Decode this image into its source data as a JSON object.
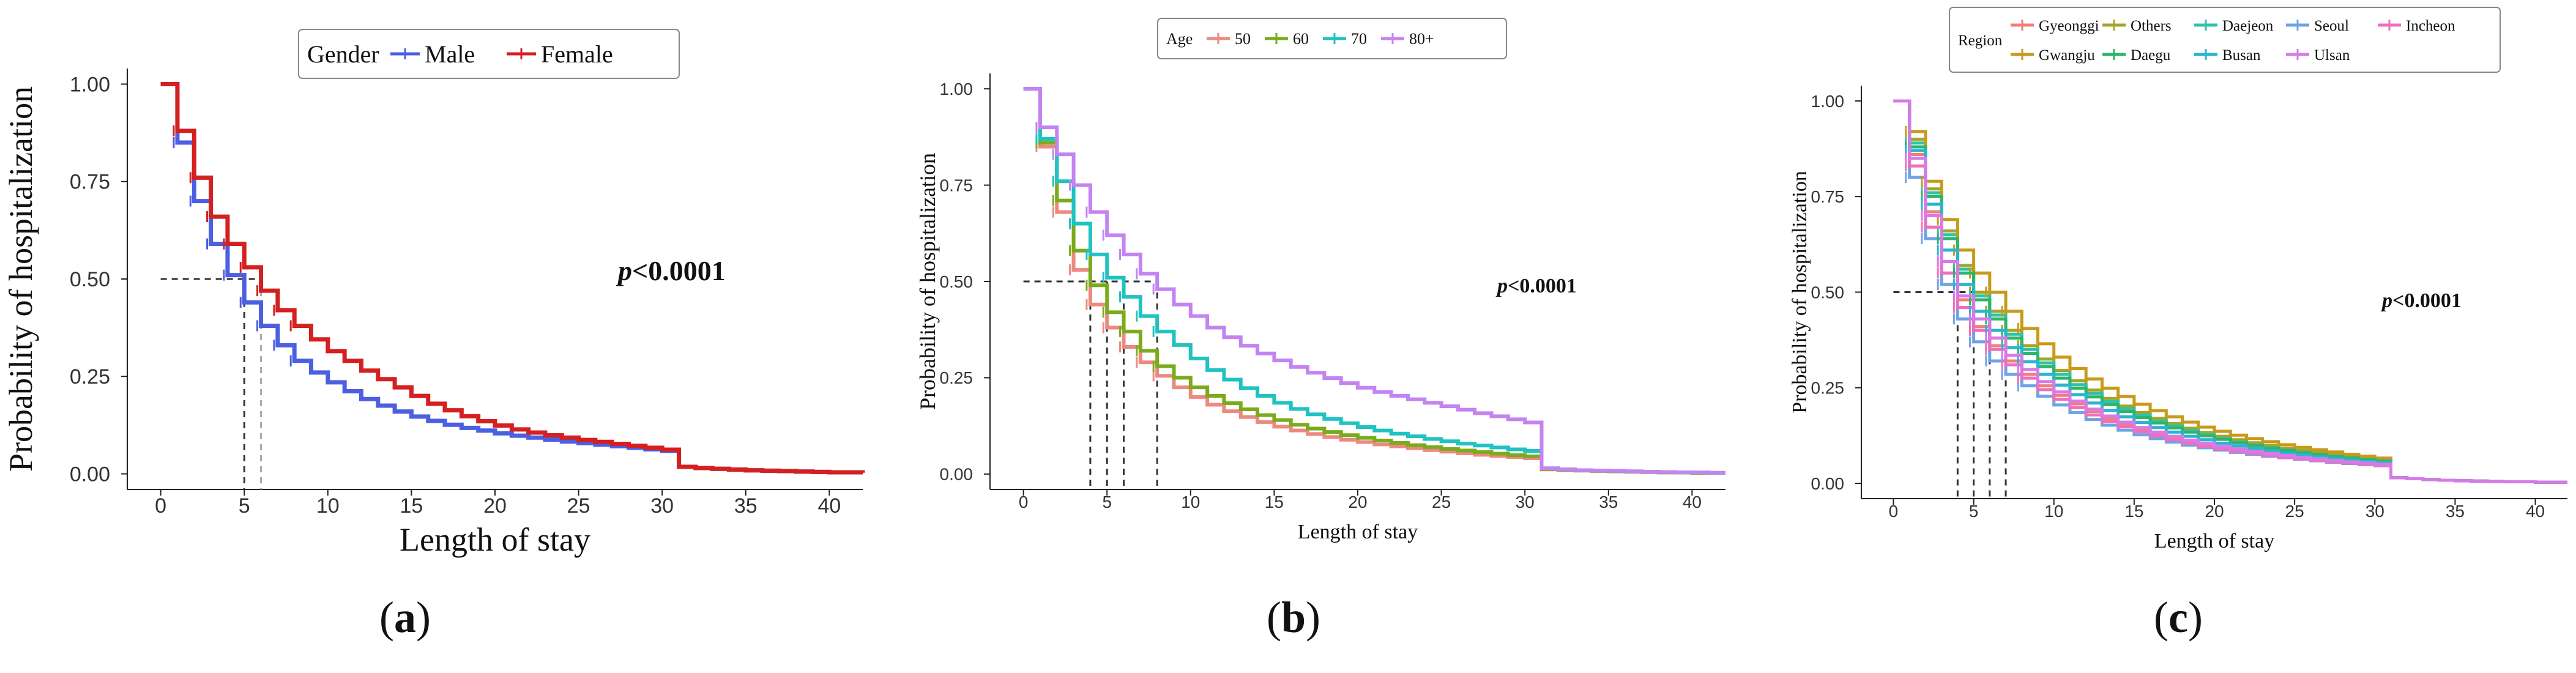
{
  "charts": [
    {
      "id": "a",
      "caption_open": "(",
      "caption_letter": "a",
      "caption_close": ")",
      "ylabel": "Probability of hospitalization",
      "xlabel": "Length of stay",
      "xticks": [
        "0",
        "5",
        "10",
        "15",
        "20",
        "25",
        "30",
        "35",
        "40"
      ],
      "yticks": [
        "0.00",
        "0.25",
        "0.50",
        "0.75",
        "1.00"
      ],
      "xlim": [
        -2,
        42
      ],
      "ylim": [
        -0.04,
        1.04
      ],
      "legend_title": "Gender",
      "pvalue": "p<0.0001",
      "medians": [
        5,
        6
      ],
      "series": [
        {
          "name": "Male",
          "color": "#4c5fe0"
        },
        {
          "name": "Female",
          "color": "#d42020"
        }
      ]
    },
    {
      "id": "b",
      "caption_open": "(",
      "caption_letter": "b",
      "caption_close": ")",
      "ylabel": "Probability of hospitalization",
      "xlabel": "Length of stay",
      "xticks": [
        "0",
        "5",
        "10",
        "15",
        "20",
        "25",
        "30",
        "35",
        "40"
      ],
      "yticks": [
        "0.00",
        "0.25",
        "0.50",
        "0.75",
        "1.00"
      ],
      "xlim": [
        -2,
        42
      ],
      "ylim": [
        -0.04,
        1.04
      ],
      "legend_title": "Age",
      "pvalue": "p<0.0001",
      "medians": [
        4,
        5,
        6,
        8
      ],
      "series": [
        {
          "name": "50",
          "color": "#ec8a80"
        },
        {
          "name": "60",
          "color": "#7aab1c"
        },
        {
          "name": "70",
          "color": "#20c2c2"
        },
        {
          "name": "80+",
          "color": "#c384f2"
        }
      ]
    },
    {
      "id": "c",
      "caption_open": "(",
      "caption_letter": "c",
      "caption_close": ")",
      "ylabel": "Probability of hospitalization",
      "xlabel": "Length of stay",
      "xticks": [
        "0",
        "5",
        "10",
        "15",
        "20",
        "25",
        "30",
        "35",
        "40"
      ],
      "yticks": [
        "0.00",
        "0.25",
        "0.50",
        "0.75",
        "1.00"
      ],
      "xlim": [
        -2,
        42
      ],
      "ylim": [
        -0.04,
        1.04
      ],
      "legend_title": "Region",
      "pvalue": "p<0.0001",
      "medians": [
        4,
        5,
        6,
        7
      ],
      "series": [
        {
          "name": "Gyeonggi",
          "color": "#ef7f78"
        },
        {
          "name": "Others",
          "color": "#a3a52a"
        },
        {
          "name": "Daejeon",
          "color": "#2ec3a9"
        },
        {
          "name": "Seoul",
          "color": "#6fa3e6"
        },
        {
          "name": "Incheon",
          "color": "#ee6fbf"
        },
        {
          "name": "Gwangju",
          "color": "#c99a1a"
        },
        {
          "name": "Daegu",
          "color": "#2db56b"
        },
        {
          "name": "Busan",
          "color": "#29b5cf"
        },
        {
          "name": "Ulsan",
          "color": "#d77ae8"
        }
      ]
    }
  ],
  "chart_data": [
    {
      "type": "line",
      "step": true,
      "title": "(a)",
      "xlabel": "Length of stay",
      "ylabel": "Probability of hospitalization",
      "xlim": [
        0,
        42
      ],
      "ylim": [
        0,
        1
      ],
      "legend_title": "Gender",
      "annotation": "p<0.0001",
      "x": [
        0,
        1,
        2,
        3,
        4,
        5,
        6,
        7,
        8,
        9,
        10,
        11,
        12,
        13,
        14,
        15,
        16,
        17,
        18,
        19,
        20,
        21,
        22,
        23,
        24,
        25,
        26,
        27,
        28,
        29,
        30,
        31,
        32,
        33,
        34,
        35,
        36,
        37,
        38,
        39,
        40,
        41,
        42
      ],
      "series": [
        {
          "name": "Male",
          "median": 5,
          "values": [
            1.0,
            0.85,
            0.7,
            0.59,
            0.51,
            0.44,
            0.38,
            0.33,
            0.29,
            0.26,
            0.235,
            0.212,
            0.192,
            0.175,
            0.16,
            0.147,
            0.136,
            0.126,
            0.118,
            0.111,
            0.104,
            0.098,
            0.093,
            0.088,
            0.083,
            0.079,
            0.075,
            0.071,
            0.067,
            0.063,
            0.059,
            0.018,
            0.015,
            0.013,
            0.011,
            0.009,
            0.008,
            0.007,
            0.006,
            0.005,
            0.004,
            0.004,
            0.003
          ]
        },
        {
          "name": "Female",
          "median": 6,
          "values": [
            1.0,
            0.88,
            0.76,
            0.66,
            0.59,
            0.53,
            0.47,
            0.42,
            0.38,
            0.345,
            0.315,
            0.29,
            0.265,
            0.243,
            0.222,
            0.2,
            0.18,
            0.163,
            0.148,
            0.135,
            0.124,
            0.114,
            0.106,
            0.099,
            0.093,
            0.087,
            0.082,
            0.077,
            0.072,
            0.067,
            0.062,
            0.018,
            0.015,
            0.013,
            0.011,
            0.009,
            0.008,
            0.007,
            0.006,
            0.005,
            0.004,
            0.004,
            0.003
          ]
        }
      ]
    },
    {
      "type": "line",
      "step": true,
      "title": "(b)",
      "xlabel": "Length of stay",
      "ylabel": "Probability of hospitalization",
      "xlim": [
        0,
        42
      ],
      "ylim": [
        0,
        1
      ],
      "legend_title": "Age",
      "annotation": "p<0.0001",
      "x": [
        0,
        1,
        2,
        3,
        4,
        5,
        6,
        7,
        8,
        9,
        10,
        11,
        12,
        13,
        14,
        15,
        16,
        17,
        18,
        19,
        20,
        21,
        22,
        23,
        24,
        25,
        26,
        27,
        28,
        29,
        30,
        31,
        32,
        33,
        34,
        35,
        36,
        37,
        38,
        39,
        40,
        41,
        42
      ],
      "series": [
        {
          "name": "50",
          "median": 4,
          "values": [
            1.0,
            0.85,
            0.68,
            0.53,
            0.44,
            0.38,
            0.33,
            0.29,
            0.255,
            0.225,
            0.2,
            0.18,
            0.163,
            0.148,
            0.135,
            0.123,
            0.113,
            0.104,
            0.096,
            0.089,
            0.083,
            0.077,
            0.072,
            0.067,
            0.062,
            0.058,
            0.054,
            0.05,
            0.047,
            0.044,
            0.041,
            0.012,
            0.01,
            0.009,
            0.008,
            0.007,
            0.006,
            0.005,
            0.004,
            0.004,
            0.003,
            0.003,
            0.003
          ]
        },
        {
          "name": "60",
          "median": 5,
          "values": [
            1.0,
            0.86,
            0.71,
            0.58,
            0.49,
            0.42,
            0.37,
            0.32,
            0.28,
            0.25,
            0.225,
            0.203,
            0.184,
            0.168,
            0.153,
            0.14,
            0.128,
            0.118,
            0.109,
            0.101,
            0.094,
            0.087,
            0.081,
            0.075,
            0.07,
            0.065,
            0.061,
            0.057,
            0.053,
            0.049,
            0.046,
            0.013,
            0.011,
            0.009,
            0.008,
            0.007,
            0.006,
            0.005,
            0.004,
            0.004,
            0.003,
            0.003,
            0.003
          ]
        },
        {
          "name": "70",
          "median": 6,
          "values": [
            1.0,
            0.87,
            0.76,
            0.65,
            0.57,
            0.51,
            0.46,
            0.41,
            0.37,
            0.335,
            0.3,
            0.27,
            0.245,
            0.223,
            0.203,
            0.185,
            0.169,
            0.155,
            0.143,
            0.132,
            0.122,
            0.113,
            0.105,
            0.098,
            0.091,
            0.085,
            0.079,
            0.074,
            0.069,
            0.064,
            0.06,
            0.015,
            0.012,
            0.01,
            0.009,
            0.008,
            0.007,
            0.006,
            0.005,
            0.004,
            0.004,
            0.003,
            0.003
          ]
        },
        {
          "name": "80+",
          "median": 8,
          "values": [
            1.0,
            0.9,
            0.83,
            0.75,
            0.68,
            0.62,
            0.57,
            0.52,
            0.48,
            0.44,
            0.41,
            0.38,
            0.355,
            0.333,
            0.313,
            0.295,
            0.278,
            0.263,
            0.249,
            0.236,
            0.224,
            0.213,
            0.203,
            0.194,
            0.185,
            0.176,
            0.167,
            0.158,
            0.15,
            0.142,
            0.134,
            0.015,
            0.012,
            0.01,
            0.009,
            0.008,
            0.007,
            0.006,
            0.005,
            0.004,
            0.004,
            0.003,
            0.003
          ]
        }
      ]
    },
    {
      "type": "line",
      "step": true,
      "title": "(c)",
      "xlabel": "Length of stay",
      "ylabel": "Probability of hospitalization",
      "xlim": [
        0,
        42
      ],
      "ylim": [
        0,
        1
      ],
      "legend_title": "Region",
      "annotation": "p<0.0001",
      "x": [
        0,
        1,
        2,
        3,
        4,
        5,
        6,
        7,
        8,
        9,
        10,
        11,
        12,
        13,
        14,
        15,
        16,
        17,
        18,
        19,
        20,
        21,
        22,
        23,
        24,
        25,
        26,
        27,
        28,
        29,
        30,
        31,
        32,
        33,
        34,
        35,
        36,
        37,
        38,
        39,
        40,
        41,
        42
      ],
      "series": [
        {
          "name": "Gyeonggi",
          "median": 5,
          "values": [
            1.0,
            0.86,
            0.71,
            0.58,
            0.48,
            0.41,
            0.36,
            0.32,
            0.285,
            0.255,
            0.23,
            0.208,
            0.188,
            0.17,
            0.155,
            0.142,
            0.13,
            0.12,
            0.111,
            0.103,
            0.096,
            0.09,
            0.084,
            0.079,
            0.074,
            0.07,
            0.066,
            0.062,
            0.058,
            0.055,
            0.052,
            0.015,
            0.012,
            0.01,
            0.008,
            0.007,
            0.006,
            0.005,
            0.004,
            0.004,
            0.003,
            0.003,
            0.003
          ]
        },
        {
          "name": "Others",
          "median": 6,
          "values": [
            1.0,
            0.9,
            0.77,
            0.66,
            0.57,
            0.5,
            0.45,
            0.4,
            0.36,
            0.325,
            0.295,
            0.268,
            0.244,
            0.222,
            0.202,
            0.185,
            0.17,
            0.156,
            0.144,
            0.133,
            0.123,
            0.114,
            0.106,
            0.099,
            0.092,
            0.086,
            0.08,
            0.075,
            0.07,
            0.065,
            0.06,
            0.015,
            0.012,
            0.01,
            0.008,
            0.007,
            0.006,
            0.005,
            0.004,
            0.004,
            0.003,
            0.003,
            0.003
          ]
        },
        {
          "name": "Daejeon",
          "median": 6,
          "values": [
            1.0,
            0.89,
            0.76,
            0.65,
            0.56,
            0.49,
            0.44,
            0.39,
            0.35,
            0.315,
            0.285,
            0.258,
            0.235,
            0.214,
            0.195,
            0.178,
            0.163,
            0.15,
            0.138,
            0.127,
            0.117,
            0.108,
            0.1,
            0.093,
            0.087,
            0.081,
            0.076,
            0.071,
            0.066,
            0.062,
            0.058,
            0.015,
            0.012,
            0.01,
            0.008,
            0.007,
            0.006,
            0.005,
            0.004,
            0.004,
            0.003,
            0.003,
            0.003
          ]
        },
        {
          "name": "Seoul",
          "median": 4,
          "values": [
            1.0,
            0.8,
            0.64,
            0.52,
            0.43,
            0.37,
            0.32,
            0.285,
            0.255,
            0.228,
            0.205,
            0.185,
            0.167,
            0.152,
            0.139,
            0.127,
            0.117,
            0.108,
            0.1,
            0.093,
            0.087,
            0.081,
            0.076,
            0.071,
            0.067,
            0.063,
            0.059,
            0.055,
            0.052,
            0.049,
            0.046,
            0.015,
            0.012,
            0.01,
            0.008,
            0.007,
            0.006,
            0.005,
            0.004,
            0.004,
            0.003,
            0.003,
            0.003
          ]
        },
        {
          "name": "Incheon",
          "median": 5,
          "values": [
            1.0,
            0.83,
            0.67,
            0.55,
            0.46,
            0.4,
            0.35,
            0.31,
            0.275,
            0.245,
            0.22,
            0.198,
            0.179,
            0.162,
            0.148,
            0.135,
            0.124,
            0.114,
            0.105,
            0.097,
            0.09,
            0.084,
            0.078,
            0.073,
            0.068,
            0.064,
            0.06,
            0.056,
            0.053,
            0.05,
            0.047,
            0.015,
            0.012,
            0.01,
            0.008,
            0.007,
            0.006,
            0.005,
            0.004,
            0.004,
            0.003,
            0.003,
            0.003
          ]
        },
        {
          "name": "Gwangju",
          "median": 7,
          "values": [
            1.0,
            0.92,
            0.79,
            0.69,
            0.61,
            0.55,
            0.5,
            0.45,
            0.405,
            0.365,
            0.33,
            0.3,
            0.273,
            0.249,
            0.227,
            0.207,
            0.19,
            0.174,
            0.16,
            0.147,
            0.136,
            0.126,
            0.117,
            0.109,
            0.101,
            0.094,
            0.088,
            0.082,
            0.076,
            0.071,
            0.066,
            0.015,
            0.012,
            0.01,
            0.008,
            0.007,
            0.006,
            0.005,
            0.004,
            0.004,
            0.003,
            0.003,
            0.003
          ]
        },
        {
          "name": "Daegu",
          "median": 6,
          "values": [
            1.0,
            0.88,
            0.75,
            0.64,
            0.55,
            0.48,
            0.43,
            0.38,
            0.34,
            0.305,
            0.275,
            0.249,
            0.226,
            0.206,
            0.188,
            0.172,
            0.158,
            0.145,
            0.134,
            0.124,
            0.115,
            0.106,
            0.099,
            0.092,
            0.086,
            0.08,
            0.075,
            0.07,
            0.066,
            0.062,
            0.058,
            0.015,
            0.012,
            0.01,
            0.008,
            0.007,
            0.006,
            0.005,
            0.004,
            0.004,
            0.003,
            0.003,
            0.003
          ]
        },
        {
          "name": "Busan",
          "median": 5,
          "values": [
            1.0,
            0.87,
            0.73,
            0.61,
            0.52,
            0.45,
            0.4,
            0.355,
            0.318,
            0.285,
            0.257,
            0.232,
            0.21,
            0.191,
            0.174,
            0.159,
            0.146,
            0.134,
            0.123,
            0.114,
            0.105,
            0.098,
            0.091,
            0.085,
            0.079,
            0.074,
            0.069,
            0.065,
            0.061,
            0.057,
            0.054,
            0.015,
            0.012,
            0.01,
            0.008,
            0.007,
            0.006,
            0.005,
            0.004,
            0.004,
            0.003,
            0.003,
            0.003
          ]
        },
        {
          "name": "Ulsan",
          "median": 5,
          "values": [
            1.0,
            0.85,
            0.7,
            0.58,
            0.49,
            0.43,
            0.38,
            0.335,
            0.298,
            0.266,
            0.239,
            0.215,
            0.194,
            0.176,
            0.16,
            0.146,
            0.134,
            0.123,
            0.113,
            0.105,
            0.097,
            0.09,
            0.084,
            0.078,
            0.073,
            0.068,
            0.064,
            0.06,
            0.056,
            0.053,
            0.05,
            0.015,
            0.012,
            0.01,
            0.008,
            0.007,
            0.006,
            0.005,
            0.004,
            0.004,
            0.003,
            0.003,
            0.003
          ]
        }
      ]
    }
  ]
}
